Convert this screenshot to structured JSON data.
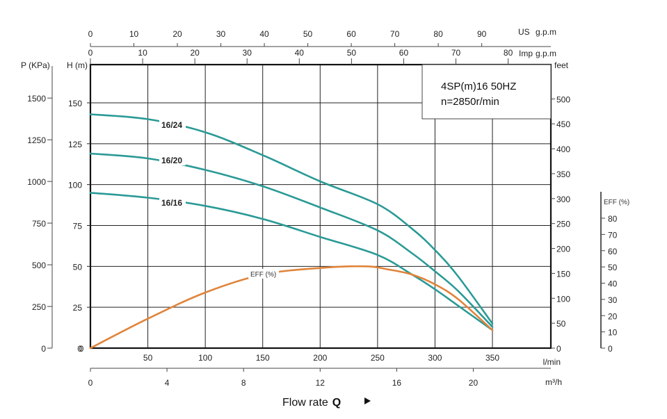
{
  "chart_data": {
    "type": "line",
    "title_lines": [
      "4SP(m)16  50HZ",
      "n=2850r/min"
    ],
    "xlabel": "Flow rate",
    "xlabel_bold": "Q",
    "x_unit": "l/min",
    "xlim": [
      0,
      350
    ],
    "x_ticks": [
      50,
      100,
      150,
      200,
      250,
      300,
      350
    ],
    "grid": true,
    "axes": {
      "us_gpm": {
        "label": "US",
        "unit": "g.p.m",
        "ticks": [
          0,
          10,
          20,
          30,
          40,
          50,
          60,
          70,
          80,
          90
        ]
      },
      "imp_gpm": {
        "label": "Imp",
        "unit": "g.p.m",
        "ticks": [
          0,
          10,
          20,
          30,
          40,
          50,
          60,
          70,
          80
        ]
      },
      "m3h": {
        "unit": "m³/h",
        "ticks": [
          0,
          4,
          8,
          12,
          16,
          20
        ]
      },
      "pressure": {
        "label": "P (KPa)",
        "ticks": [
          0,
          250,
          500,
          750,
          1000,
          1250,
          1500
        ]
      },
      "head_m": {
        "label": "H (m)",
        "ylim": [
          0,
          170
        ],
        "ticks": [
          0,
          25,
          50,
          75,
          100,
          125,
          150
        ]
      },
      "head_ft": {
        "label": "feet",
        "ticks": [
          0,
          50,
          100,
          150,
          200,
          250,
          300,
          350,
          400,
          450,
          500
        ]
      },
      "efficiency": {
        "label": "EFF (%)",
        "ticks": [
          0,
          10,
          20,
          30,
          40,
          50,
          60,
          70,
          80
        ]
      }
    },
    "series": [
      {
        "name": "16/24",
        "axis": "head_m",
        "color": "#2a9a96",
        "x": [
          0,
          50,
          100,
          150,
          200,
          250,
          280,
          300,
          320,
          350
        ],
        "values": [
          143,
          140,
          132,
          118,
          102,
          88,
          73,
          60,
          44,
          15
        ]
      },
      {
        "name": "16/20",
        "axis": "head_m",
        "color": "#2a9a96",
        "x": [
          0,
          50,
          100,
          150,
          200,
          250,
          280,
          300,
          320,
          350
        ],
        "values": [
          119,
          116,
          109,
          99,
          86,
          72,
          58,
          47,
          35,
          13
        ]
      },
      {
        "name": "16/16",
        "axis": "head_m",
        "color": "#2a9a96",
        "x": [
          0,
          50,
          100,
          150,
          200,
          250,
          280,
          300,
          320,
          350
        ],
        "values": [
          95,
          92,
          87,
          79,
          68,
          57,
          45,
          36,
          26,
          11
        ]
      },
      {
        "name": "EFF (%)",
        "axis": "head_m",
        "color": "#e0843a",
        "x": [
          0,
          50,
          100,
          150,
          200,
          240,
          260,
          280,
          300,
          320,
          350
        ],
        "values": [
          0,
          18,
          34,
          45,
          49,
          50,
          48,
          45,
          39,
          30,
          11
        ]
      }
    ]
  }
}
